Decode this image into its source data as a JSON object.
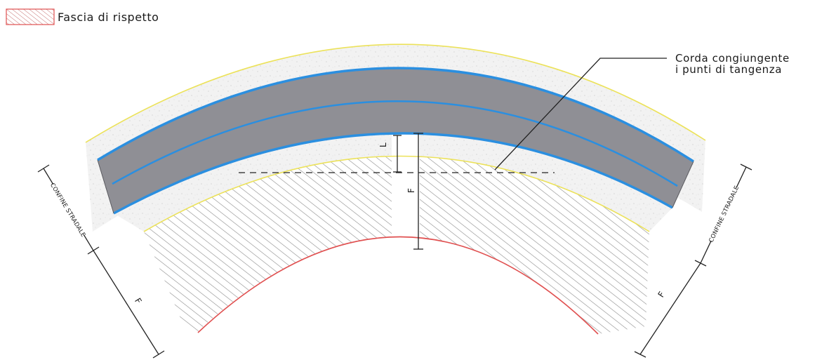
{
  "legend": {
    "label": "Fascia di rispetto",
    "swatch_color": "#e05050"
  },
  "callout": {
    "line1": "Corda congiungente",
    "line2": "i punti di tangenza"
  },
  "dimensions": {
    "L_center": "L",
    "F_center": "F",
    "F_left": "F",
    "F_right": "F"
  },
  "boundaries": {
    "left": "CONFINE STRADALE",
    "right": "CONFINE STRADALE"
  },
  "colors": {
    "road_fill": "#8f8f95",
    "lane_edges": "#2b8fe0",
    "outer_edge": "#ece25a",
    "fascia_edge": "#e05050",
    "hatch": "#8a8a8a",
    "verge": "#f1f1f1"
  }
}
